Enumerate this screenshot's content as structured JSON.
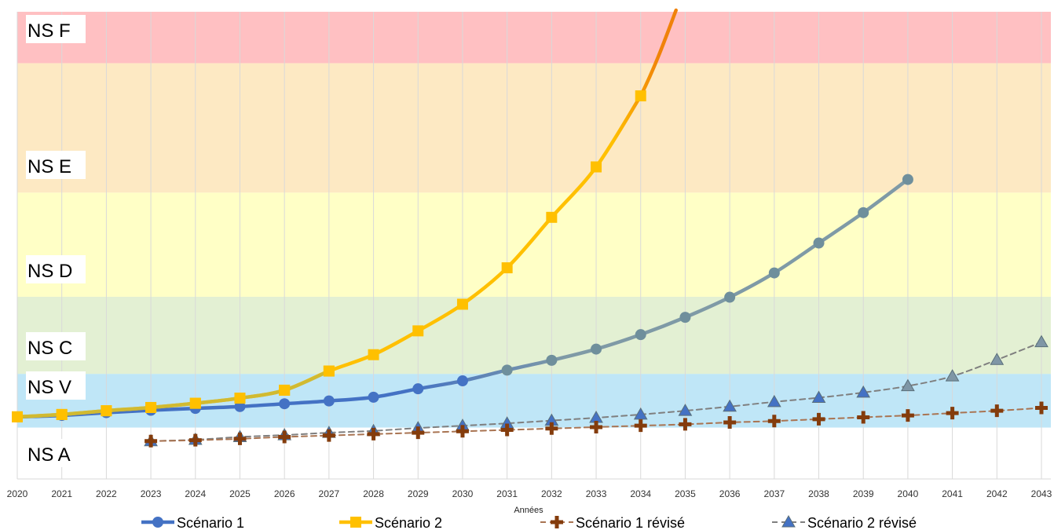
{
  "chart_data": {
    "type": "line",
    "title": "",
    "xlabel": "Années",
    "ylabel": "",
    "categories": [
      2020,
      2021,
      2022,
      2023,
      2024,
      2025,
      2026,
      2027,
      2028,
      2029,
      2030,
      2031,
      2032,
      2033,
      2034,
      2035,
      2036,
      2037,
      2038,
      2039,
      2040,
      2041,
      2042,
      2043
    ],
    "ylim": [
      0,
      100
    ],
    "grid": true,
    "legend_position": "bottom",
    "bands": [
      {
        "label": "NS A",
        "from": 0,
        "to": 11,
        "color": "#ffffff"
      },
      {
        "label": "NS V",
        "from": 11,
        "to": 22.5,
        "color": "#bfe6f7"
      },
      {
        "label": "NS C",
        "from": 22.5,
        "to": 39,
        "color": "#e3f0d3"
      },
      {
        "label": "NS D",
        "from": 39,
        "to": 61.3,
        "color": "#ffffc6"
      },
      {
        "label": "NS E",
        "from": 61.3,
        "to": 89,
        "color": "#fde9c3"
      },
      {
        "label": "NS F",
        "from": 89,
        "to": 100,
        "color": "#ffc0c2"
      }
    ],
    "series": [
      {
        "name": "Scénario 1",
        "marker": "circle",
        "dashed": false,
        "values": [
          13.3,
          13.6,
          14.2,
          14.7,
          15.1,
          15.5,
          16.1,
          16.7,
          17.5,
          19.3,
          21.0,
          23.3,
          25.4,
          27.8,
          30.9,
          34.6,
          38.9,
          44.1,
          50.5,
          57.0,
          64.1,
          null,
          null,
          null
        ]
      },
      {
        "name": "Scénario 2",
        "marker": "square",
        "dashed": false,
        "values": [
          13.3,
          13.8,
          14.6,
          15.3,
          16.2,
          17.3,
          19.0,
          23.1,
          26.6,
          31.7,
          37.4,
          45.2,
          56.0,
          66.8,
          82.0,
          null,
          null,
          null,
          null,
          null,
          null,
          null,
          null,
          null
        ]
      },
      {
        "name": "Scénario 1 révisé",
        "marker": "plus",
        "dashed": true,
        "values": [
          null,
          null,
          null,
          8.1,
          8.3,
          8.6,
          9.0,
          9.3,
          9.6,
          9.9,
          10.2,
          10.5,
          10.8,
          11.1,
          11.4,
          11.7,
          12.1,
          12.4,
          12.8,
          13.2,
          13.6,
          14.1,
          14.6,
          15.2
        ]
      },
      {
        "name": "Scénario 2 révisé",
        "marker": "triangle",
        "dashed": true,
        "values": [
          null,
          null,
          null,
          8.1,
          8.4,
          9.0,
          9.4,
          9.9,
          10.3,
          10.9,
          11.4,
          11.9,
          12.5,
          13.1,
          13.8,
          14.6,
          15.5,
          16.5,
          17.4,
          18.5,
          19.9,
          22.0,
          25.5,
          29.3
        ]
      }
    ]
  },
  "colors": {
    "scenario1_start": "#4472c4",
    "scenario1_end": "#7f9aa6",
    "scenario2": "#ffc000",
    "scenario2_end": "#f0820a",
    "revised1": "#843c0c",
    "revised1_line": "#a97452",
    "revised2": "#4472c4",
    "revised2_line": "#7f7f7f",
    "grid": "#d9d9d9"
  }
}
